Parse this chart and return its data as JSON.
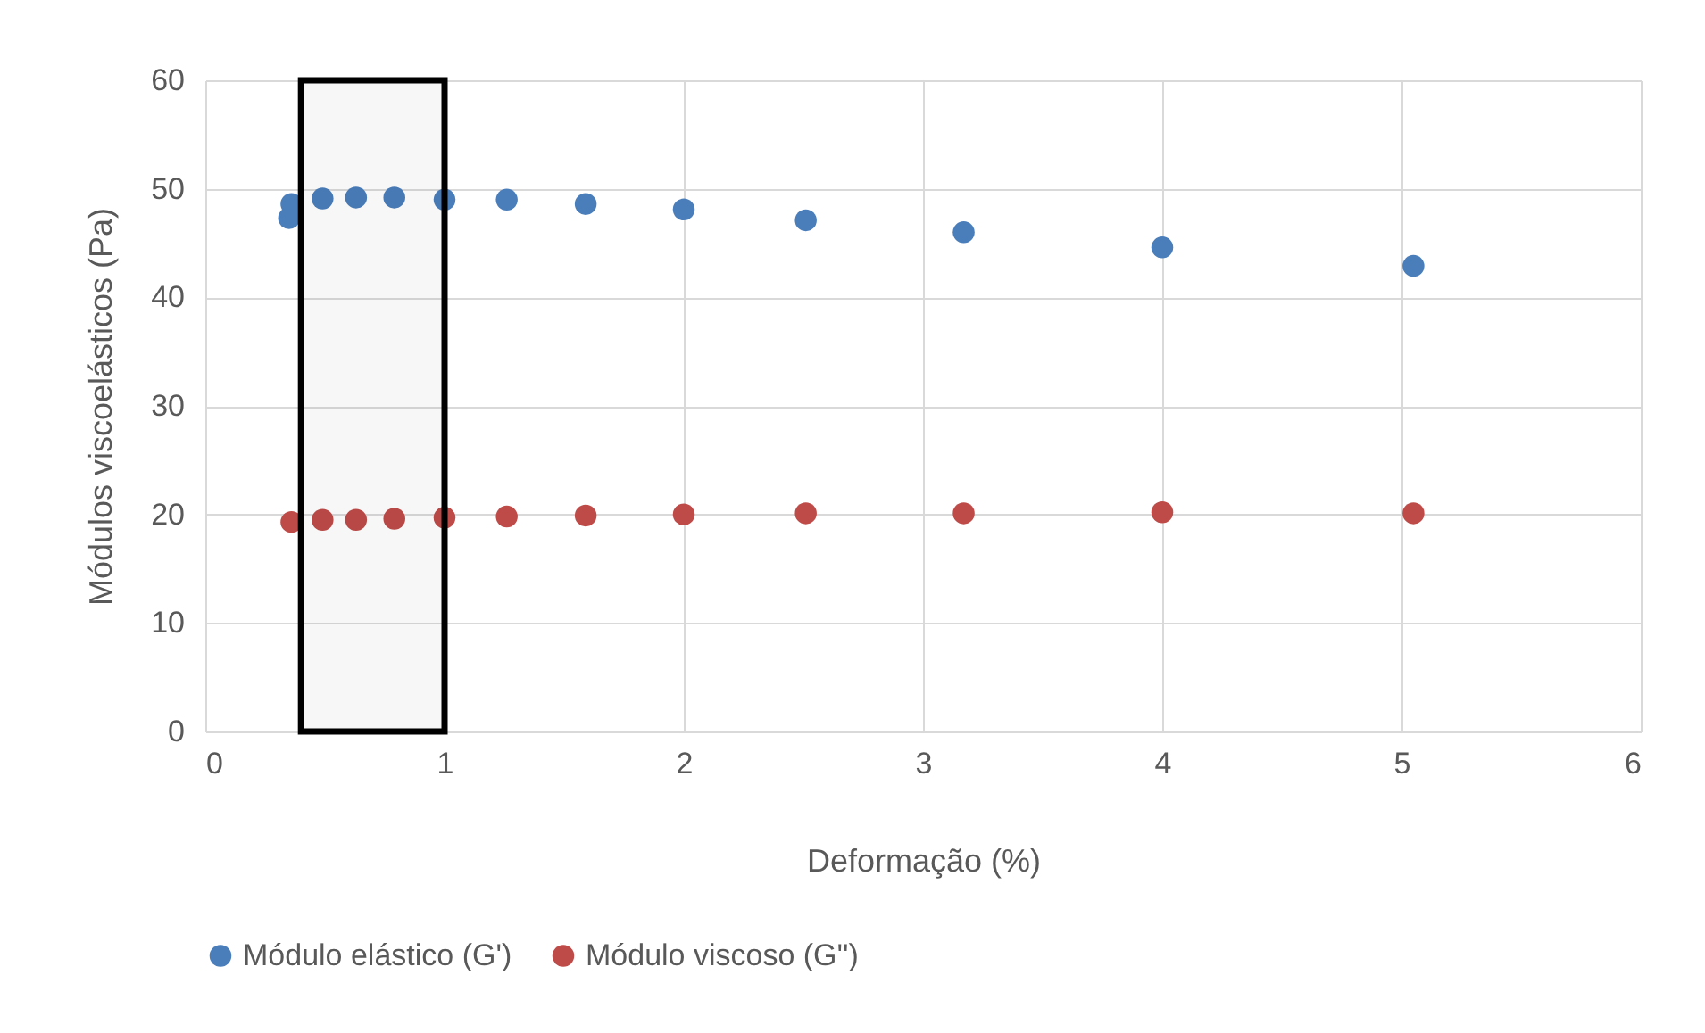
{
  "chart_data": {
    "type": "scatter",
    "xlabel": "Deformação (%)",
    "ylabel": "Módulos viscoelásticos (Pa)",
    "x": [
      0.36,
      0.49,
      0.63,
      0.79,
      1.0,
      1.26,
      1.59,
      2.0,
      2.51,
      3.17,
      4.0,
      5.05
    ],
    "series": [
      {
        "name": "Módulo elástico (G')",
        "color": "#4a7ebb",
        "x": [
          0.36,
          0.35,
          0.49,
          0.63,
          0.79,
          1.0,
          1.26,
          1.59,
          2.0,
          2.51,
          3.17,
          4.0,
          5.05
        ],
        "values": [
          48.6,
          47.3,
          49.1,
          49.2,
          49.2,
          49.0,
          49.0,
          48.6,
          48.1,
          47.1,
          46.0,
          44.6,
          42.9
        ]
      },
      {
        "name": "Módulo viscoso (G'')",
        "color": "#be4b48",
        "values": [
          19.3,
          19.5,
          19.5,
          19.6,
          19.7,
          19.8,
          19.9,
          20.0,
          20.1,
          20.1,
          20.2,
          20.1
        ]
      }
    ],
    "bands": [
      {
        "axis": "x",
        "from": 0.4,
        "to": 1.0,
        "color": "#000000"
      }
    ],
    "xlim": [
      0,
      6
    ],
    "xticks": [
      0,
      1,
      2,
      3,
      4,
      5,
      6
    ],
    "ylim": [
      0,
      60
    ],
    "yticks": [
      0,
      10,
      20,
      30,
      40,
      50,
      60
    ],
    "grid": true,
    "legend": "bottom",
    "marker": "circle"
  }
}
